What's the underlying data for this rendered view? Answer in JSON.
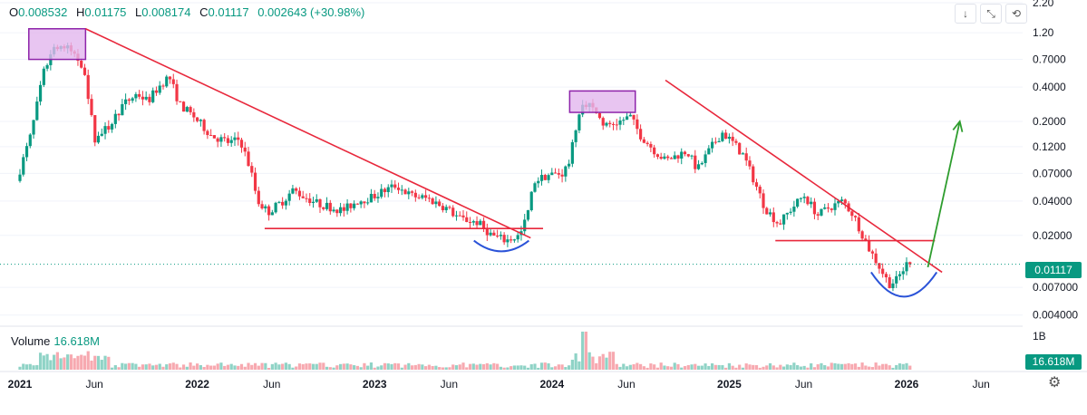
{
  "header": {
    "o_label": "O",
    "o_value": "0.008532",
    "h_label": "H",
    "h_value": "0.01175",
    "l_label": "L",
    "l_value": "0.008174",
    "c_label": "C",
    "c_value": "0.01117",
    "change": "0.002643 (+30.98%)"
  },
  "volume": {
    "label": "Volume",
    "value": "16.618M",
    "axis_label": "1B",
    "tag": "16.618M"
  },
  "last_price_tag": "0.01117",
  "toolbar": {
    "down_icon": "↓",
    "collapse_icon": "⤡",
    "reset_icon": "⟲"
  },
  "colors": {
    "up": "#089981",
    "down": "#f23645",
    "trend": "#e8283c",
    "box_fill": "#e2b6ee",
    "box_stroke": "#8e24aa",
    "cup": "#2b53d8",
    "arrow": "#2e9d2e"
  },
  "chart_data": {
    "type": "candlestick",
    "title": "",
    "scale": "log",
    "ylim": [
      0.0035,
      2.2
    ],
    "y_ticks": [
      "2.20",
      "1.20",
      "0.7000",
      "0.4000",
      "0.2000",
      "0.1200",
      "0.07000",
      "0.04000",
      "0.02000",
      "0.007000",
      "0.004000"
    ],
    "y_tick_values": [
      2.2,
      1.2,
      0.7,
      0.4,
      0.2,
      0.12,
      0.07,
      0.04,
      0.02,
      0.007,
      0.004
    ],
    "x_ticks": [
      "2021",
      "Jun",
      "2022",
      "Jun",
      "2023",
      "Jun",
      "2024",
      "Jun",
      "2025",
      "Jun",
      "2026",
      "Jun"
    ],
    "x_tick_t": [
      2021.0,
      2021.42,
      2022.0,
      2022.42,
      2023.0,
      2023.42,
      2024.0,
      2024.42,
      2025.0,
      2025.42,
      2026.0,
      2026.42
    ],
    "x_tick_bold": [
      true,
      false,
      true,
      false,
      true,
      false,
      true,
      false,
      true,
      false,
      true,
      false
    ],
    "price_anchors": [
      [
        2021.0,
        0.06
      ],
      [
        2021.08,
        0.15
      ],
      [
        2021.16,
        0.6
      ],
      [
        2021.22,
        0.95
      ],
      [
        2021.3,
        0.85
      ],
      [
        2021.38,
        0.6
      ],
      [
        2021.44,
        0.14
      ],
      [
        2021.52,
        0.18
      ],
      [
        2021.6,
        0.28
      ],
      [
        2021.68,
        0.35
      ],
      [
        2021.74,
        0.3
      ],
      [
        2021.8,
        0.4
      ],
      [
        2021.86,
        0.5
      ],
      [
        2021.92,
        0.28
      ],
      [
        2022.0,
        0.22
      ],
      [
        2022.1,
        0.15
      ],
      [
        2022.2,
        0.13
      ],
      [
        2022.26,
        0.14
      ],
      [
        2022.32,
        0.075
      ],
      [
        2022.36,
        0.04
      ],
      [
        2022.42,
        0.032
      ],
      [
        2022.5,
        0.04
      ],
      [
        2022.56,
        0.05
      ],
      [
        2022.62,
        0.044
      ],
      [
        2022.7,
        0.038
      ],
      [
        2022.78,
        0.035
      ],
      [
        2022.84,
        0.033
      ],
      [
        2022.92,
        0.04
      ],
      [
        2023.0,
        0.043
      ],
      [
        2023.08,
        0.05
      ],
      [
        2023.14,
        0.055
      ],
      [
        2023.22,
        0.045
      ],
      [
        2023.32,
        0.042
      ],
      [
        2023.42,
        0.035
      ],
      [
        2023.5,
        0.028
      ],
      [
        2023.6,
        0.026
      ],
      [
        2023.68,
        0.02
      ],
      [
        2023.76,
        0.018
      ],
      [
        2023.84,
        0.02
      ],
      [
        2023.88,
        0.03
      ],
      [
        2023.92,
        0.06
      ],
      [
        2024.0,
        0.068
      ],
      [
        2024.08,
        0.07
      ],
      [
        2024.12,
        0.09
      ],
      [
        2024.16,
        0.2
      ],
      [
        2024.2,
        0.3
      ],
      [
        2024.26,
        0.25
      ],
      [
        2024.32,
        0.18
      ],
      [
        2024.4,
        0.2
      ],
      [
        2024.46,
        0.22
      ],
      [
        2024.52,
        0.15
      ],
      [
        2024.6,
        0.11
      ],
      [
        2024.66,
        0.09
      ],
      [
        2024.72,
        0.1
      ],
      [
        2024.78,
        0.11
      ],
      [
        2024.84,
        0.075
      ],
      [
        2024.92,
        0.12
      ],
      [
        2024.98,
        0.16
      ],
      [
        2025.04,
        0.13
      ],
      [
        2025.1,
        0.1
      ],
      [
        2025.16,
        0.06
      ],
      [
        2025.22,
        0.035
      ],
      [
        2025.3,
        0.025
      ],
      [
        2025.36,
        0.033
      ],
      [
        2025.44,
        0.045
      ],
      [
        2025.52,
        0.03
      ],
      [
        2025.58,
        0.035
      ],
      [
        2025.66,
        0.04
      ],
      [
        2025.72,
        0.03
      ],
      [
        2025.76,
        0.022
      ],
      [
        2025.8,
        0.016
      ],
      [
        2025.86,
        0.011
      ],
      [
        2025.92,
        0.0075
      ],
      [
        2025.96,
        0.008
      ],
      [
        2026.02,
        0.0112
      ]
    ],
    "last_price": 0.01117,
    "volume_spike_t": 2024.18,
    "annotations": {
      "boxes": [
        {
          "t0": 2021.05,
          "t1": 2021.37,
          "p_top": 1.3,
          "p_bot": 0.7
        },
        {
          "t0": 2024.1,
          "t1": 2024.47,
          "p_top": 0.37,
          "p_bot": 0.24
        }
      ],
      "trendlines": [
        {
          "t0": 2021.37,
          "p0": 1.3,
          "t1": 2023.88,
          "p1": 0.019
        },
        {
          "t0": 2022.38,
          "p0": 0.023,
          "t1": 2023.95,
          "p1": 0.023
        },
        {
          "t0": 2024.64,
          "p0": 0.46,
          "t1": 2026.2,
          "p1": 0.0095
        },
        {
          "t0": 2025.26,
          "p0": 0.018,
          "t1": 2026.16,
          "p1": 0.018
        }
      ],
      "cups": [
        {
          "t0": 2023.56,
          "t1": 2023.87,
          "p_edge": 0.018,
          "p_low": 0.0145
        },
        {
          "t0": 2025.8,
          "t1": 2026.17,
          "p_edge": 0.0095,
          "p_low": 0.0058
        }
      ],
      "arrow": {
        "t0": 2026.12,
        "p0": 0.0105,
        "t1": 2026.3,
        "p1": 0.2
      }
    }
  }
}
